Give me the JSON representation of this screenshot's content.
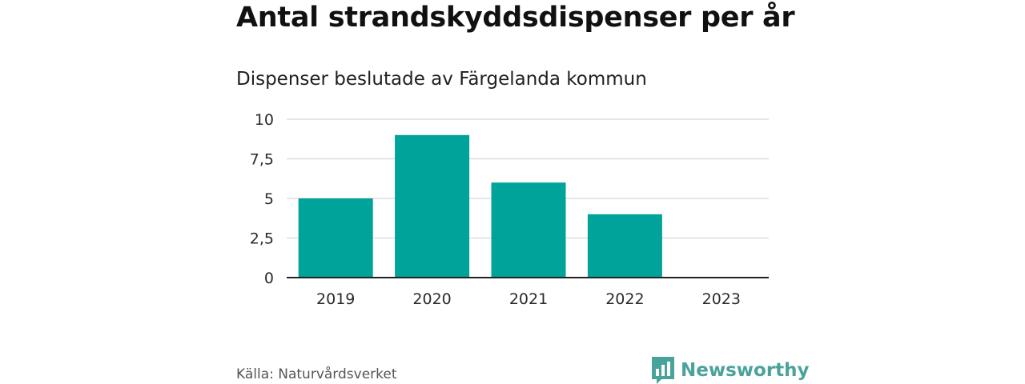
{
  "title": "Antal strandskyddsdispenser per år",
  "subtitle": "Dispenser beslutade av Färgelanda kommun",
  "source": "Källa: Naturvårdsverket",
  "brand": {
    "name": "Newsworthy",
    "icon": "newsworthy-logo-icon",
    "color": "#4aa39a"
  },
  "colors": {
    "bar": "#00a39a",
    "grid": "#dddddd",
    "axis": "#222222"
  },
  "chart_data": {
    "type": "bar",
    "title": "Antal strandskyddsdispenser per år",
    "subtitle": "Dispenser beslutade av Färgelanda kommun",
    "xlabel": "",
    "ylabel": "",
    "categories": [
      "2019",
      "2020",
      "2021",
      "2022",
      "2023"
    ],
    "values": [
      5,
      9,
      6,
      4,
      0
    ],
    "ylim": [
      0,
      10
    ],
    "yticks": [
      0,
      2.5,
      5,
      7.5,
      10
    ],
    "ytick_labels": [
      "0",
      "2,5",
      "5",
      "7,5",
      "10"
    ],
    "grid": true,
    "legend": "none"
  }
}
